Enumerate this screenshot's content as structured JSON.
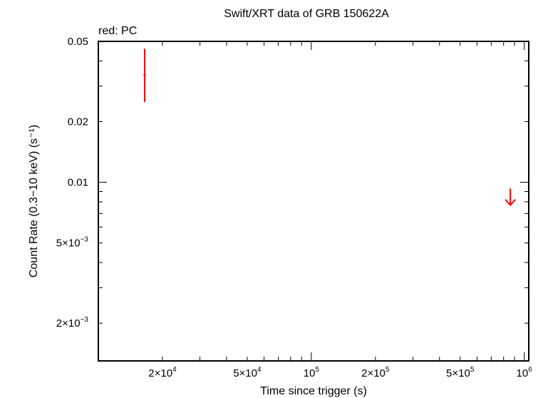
{
  "chart_data": {
    "type": "scatter",
    "title": "Swift/XRT data of GRB 150622A",
    "annotation": "red: PC",
    "xlabel": "Time since trigger (s)",
    "ylabel": "Count Rate (0.3−10 keV) (s⁻¹)",
    "x_scale": "log",
    "y_scale": "log",
    "xlim": [
      10000,
      1050000
    ],
    "ylim": [
      0.0013,
      0.05
    ],
    "grid": false,
    "x_ticks": [
      {
        "value": 20000,
        "mant": "2×10",
        "exp": "4"
      },
      {
        "value": 50000,
        "mant": "5×10",
        "exp": "4"
      },
      {
        "value": 100000,
        "mant": "10",
        "exp": "5"
      },
      {
        "value": 200000,
        "mant": "2×10",
        "exp": "5"
      },
      {
        "value": 500000,
        "mant": "5×10",
        "exp": "5"
      },
      {
        "value": 1000000,
        "mant": "10",
        "exp": "6"
      }
    ],
    "y_ticks": [
      {
        "value": 0.002,
        "mant": "2×10",
        "exp": "−3"
      },
      {
        "value": 0.005,
        "mant": "5×10",
        "exp": "−3"
      },
      {
        "value": 0.01,
        "mant": "0.01",
        "exp": ""
      },
      {
        "value": 0.02,
        "mant": "0.02",
        "exp": ""
      },
      {
        "value": 0.05,
        "mant": "0.05",
        "exp": ""
      }
    ],
    "series": [
      {
        "name": "PC",
        "color": "#ff0000",
        "points": [
          {
            "x": 16500,
            "y": 0.034,
            "y_low": 0.025,
            "y_high": 0.046,
            "x_low": 16300,
            "x_high": 16700
          }
        ],
        "upper_limits": [
          {
            "x": 860000,
            "y": 0.0093,
            "arrow_to": 0.0077
          }
        ]
      }
    ]
  }
}
